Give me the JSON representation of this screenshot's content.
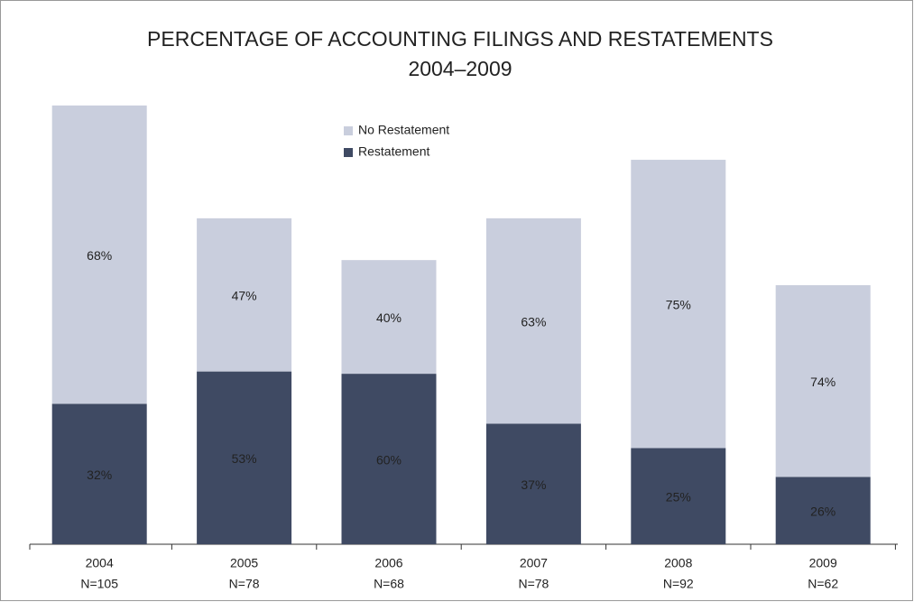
{
  "chart_data": {
    "type": "stacked_bar",
    "title": "PERCENTAGE OF ACCOUNTING FILINGS AND RESTATEMENTS",
    "subtitle": "2004–2009",
    "categories": [
      "2004",
      "2005",
      "2006",
      "2007",
      "2008",
      "2009"
    ],
    "counts": [
      105,
      78,
      68,
      78,
      92,
      62
    ],
    "count_labels": [
      "N=105",
      "N=78",
      "N=68",
      "N=78",
      "N=92",
      "N=62"
    ],
    "series": [
      {
        "name": "Restatement",
        "color": "#3f4a63",
        "values": [
          32,
          53,
          60,
          37,
          25,
          26
        ],
        "value_labels": [
          "32%",
          "53%",
          "60%",
          "37%",
          "25%",
          "26%"
        ]
      },
      {
        "name": "No Restatement",
        "color": "#c9cedd",
        "values": [
          68,
          47,
          40,
          63,
          75,
          74
        ],
        "value_labels": [
          "68%",
          "47%",
          "40%",
          "63%",
          "75%",
          "74%"
        ]
      }
    ]
  }
}
